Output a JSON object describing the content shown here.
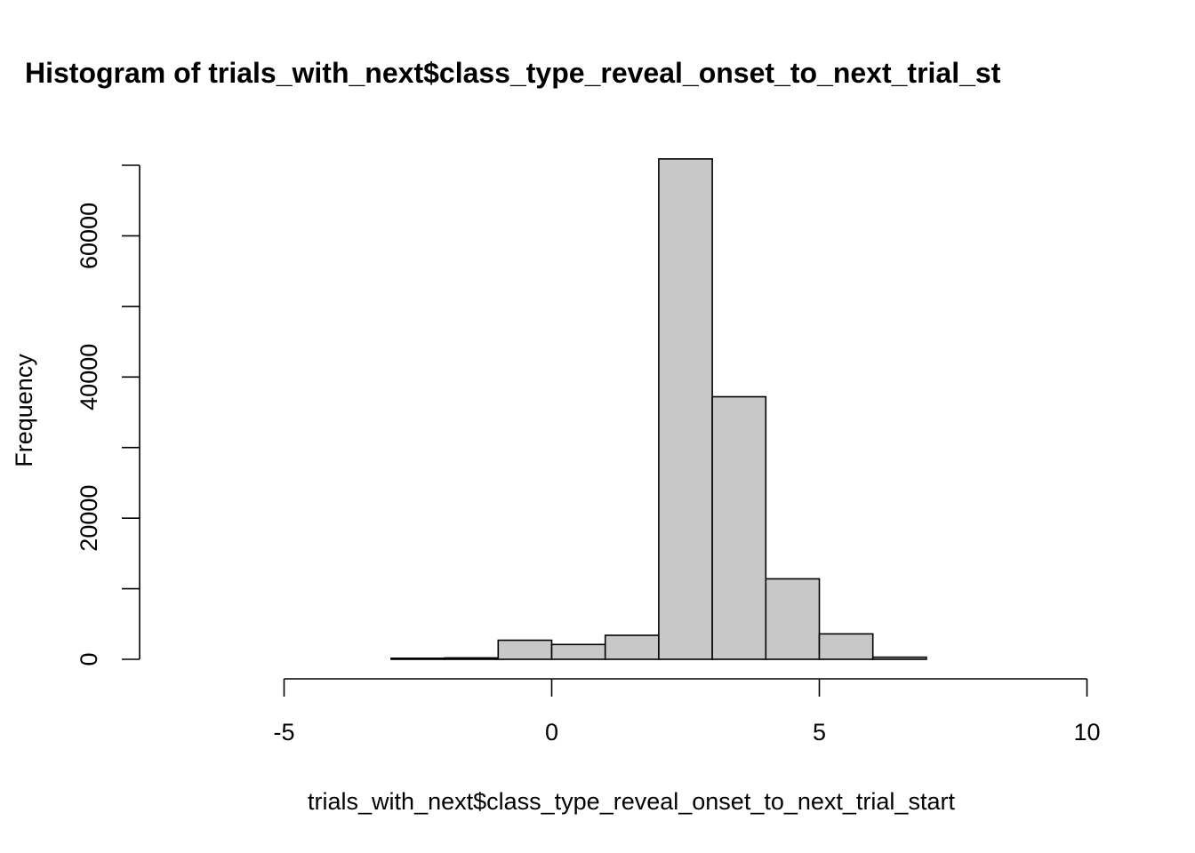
{
  "chart_data": {
    "type": "bar",
    "subtype": "histogram",
    "title": "Histogram of trials_with_next$class_type_reveal_onset_to_next_trial_st",
    "xlabel": "trials_with_next$class_type_reveal_onset_to_next_trial_start",
    "ylabel": "Frequency",
    "bins": [
      {
        "start": -7,
        "end": -6,
        "count": 0
      },
      {
        "start": -6,
        "end": -5,
        "count": 0
      },
      {
        "start": -5,
        "end": -4,
        "count": 0
      },
      {
        "start": -4,
        "end": -3,
        "count": 0
      },
      {
        "start": -3,
        "end": -2,
        "count": 150
      },
      {
        "start": -2,
        "end": -1,
        "count": 200
      },
      {
        "start": -1,
        "end": 0,
        "count": 2700
      },
      {
        "start": 0,
        "end": 1,
        "count": 2100
      },
      {
        "start": 1,
        "end": 2,
        "count": 3400
      },
      {
        "start": 2,
        "end": 3,
        "count": 70900
      },
      {
        "start": 3,
        "end": 4,
        "count": 37200
      },
      {
        "start": 4,
        "end": 5,
        "count": 11400
      },
      {
        "start": 5,
        "end": 6,
        "count": 3600
      },
      {
        "start": 6,
        "end": 7,
        "count": 300
      },
      {
        "start": 7,
        "end": 8,
        "count": 0
      },
      {
        "start": 8,
        "end": 9,
        "count": 0
      },
      {
        "start": 9,
        "end": 10,
        "count": 0
      }
    ],
    "x_ticks": [
      -5,
      0,
      5,
      10
    ],
    "x_tick_labels": [
      "-5",
      "0",
      "5",
      "10"
    ],
    "y_ticks": [
      0,
      10000,
      20000,
      30000,
      40000,
      50000,
      60000,
      70000
    ],
    "y_tick_labels": [
      "0",
      "",
      "20000",
      "",
      "40000",
      "",
      "60000",
      ""
    ],
    "xlim": [
      -7,
      10
    ],
    "ylim": [
      0,
      70000
    ],
    "grid": false,
    "legend": "none",
    "colors": {
      "bar_fill": "#c8c8c8",
      "bar_stroke": "#000000",
      "axis": "#000000"
    }
  }
}
